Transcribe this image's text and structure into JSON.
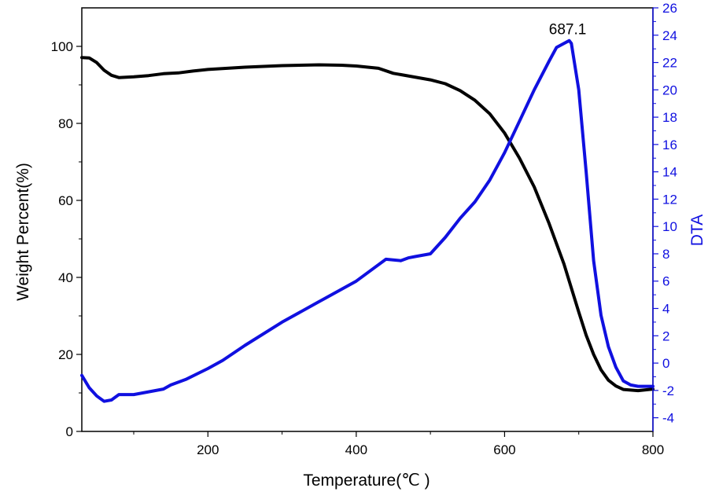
{
  "chart_data": {
    "type": "line",
    "xlabel": "Temperature(℃ )",
    "ylabel_left": "Weight Percent(%)",
    "ylabel_right": "DTA",
    "xlim": [
      30,
      800
    ],
    "ylim_left": [
      0,
      110
    ],
    "ylim_right": [
      -5,
      26
    ],
    "x_ticks": [
      200,
      400,
      600,
      800
    ],
    "y_left_ticks": [
      0,
      20,
      40,
      60,
      80,
      100
    ],
    "y_right_ticks": [
      -4,
      -2,
      0,
      2,
      4,
      6,
      8,
      10,
      12,
      14,
      16,
      18,
      20,
      22,
      24,
      26
    ],
    "colors": {
      "weight": "#000000",
      "dta": "#1010e0",
      "right_axis": "#1010e0"
    },
    "annotations": [
      {
        "text": "687.1",
        "x": 687.1,
        "y": 23.6,
        "axis": "right"
      }
    ],
    "series": [
      {
        "axis": "left",
        "points": [
          [
            30,
            97.1
          ],
          [
            40,
            97.0
          ],
          [
            50,
            95.8
          ],
          [
            60,
            93.8
          ],
          [
            70,
            92.5
          ],
          [
            80,
            91.9
          ],
          [
            100,
            92.1
          ],
          [
            120,
            92.4
          ],
          [
            140,
            92.9
          ],
          [
            160,
            93.1
          ],
          [
            180,
            93.6
          ],
          [
            200,
            94.0
          ],
          [
            250,
            94.6
          ],
          [
            300,
            95.0
          ],
          [
            350,
            95.2
          ],
          [
            380,
            95.1
          ],
          [
            400,
            94.9
          ],
          [
            430,
            94.3
          ],
          [
            450,
            93.0
          ],
          [
            500,
            91.3
          ],
          [
            520,
            90.3
          ],
          [
            540,
            88.5
          ],
          [
            560,
            86.0
          ],
          [
            580,
            82.5
          ],
          [
            600,
            77.5
          ],
          [
            620,
            71.0
          ],
          [
            640,
            63.5
          ],
          [
            660,
            54.0
          ],
          [
            680,
            43.5
          ],
          [
            700,
            31.0
          ],
          [
            710,
            25.0
          ],
          [
            720,
            20.0
          ],
          [
            730,
            16.0
          ],
          [
            740,
            13.3
          ],
          [
            750,
            11.8
          ],
          [
            760,
            10.9
          ],
          [
            780,
            10.6
          ],
          [
            800,
            11.0
          ]
        ]
      },
      {
        "axis": "right",
        "points": [
          [
            30,
            -0.9
          ],
          [
            40,
            -1.8
          ],
          [
            50,
            -2.4
          ],
          [
            60,
            -2.8
          ],
          [
            70,
            -2.7
          ],
          [
            80,
            -2.3
          ],
          [
            100,
            -2.3
          ],
          [
            120,
            -2.1
          ],
          [
            140,
            -1.9
          ],
          [
            150,
            -1.6
          ],
          [
            170,
            -1.2
          ],
          [
            200,
            -0.4
          ],
          [
            220,
            0.2
          ],
          [
            250,
            1.3
          ],
          [
            300,
            3.0
          ],
          [
            350,
            4.5
          ],
          [
            400,
            6.0
          ],
          [
            420,
            6.8
          ],
          [
            440,
            7.6
          ],
          [
            460,
            7.5
          ],
          [
            470,
            7.7
          ],
          [
            480,
            7.8
          ],
          [
            500,
            8.0
          ],
          [
            520,
            9.2
          ],
          [
            540,
            10.6
          ],
          [
            560,
            11.8
          ],
          [
            580,
            13.4
          ],
          [
            600,
            15.4
          ],
          [
            620,
            17.7
          ],
          [
            640,
            20.0
          ],
          [
            660,
            22.1
          ],
          [
            670,
            23.1
          ],
          [
            680,
            23.4
          ],
          [
            687.1,
            23.6
          ],
          [
            690,
            23.4
          ],
          [
            700,
            20.0
          ],
          [
            710,
            14.0
          ],
          [
            720,
            7.5
          ],
          [
            730,
            3.5
          ],
          [
            740,
            1.2
          ],
          [
            750,
            -0.3
          ],
          [
            760,
            -1.3
          ],
          [
            770,
            -1.6
          ],
          [
            780,
            -1.7
          ],
          [
            800,
            -1.7
          ]
        ]
      }
    ]
  }
}
